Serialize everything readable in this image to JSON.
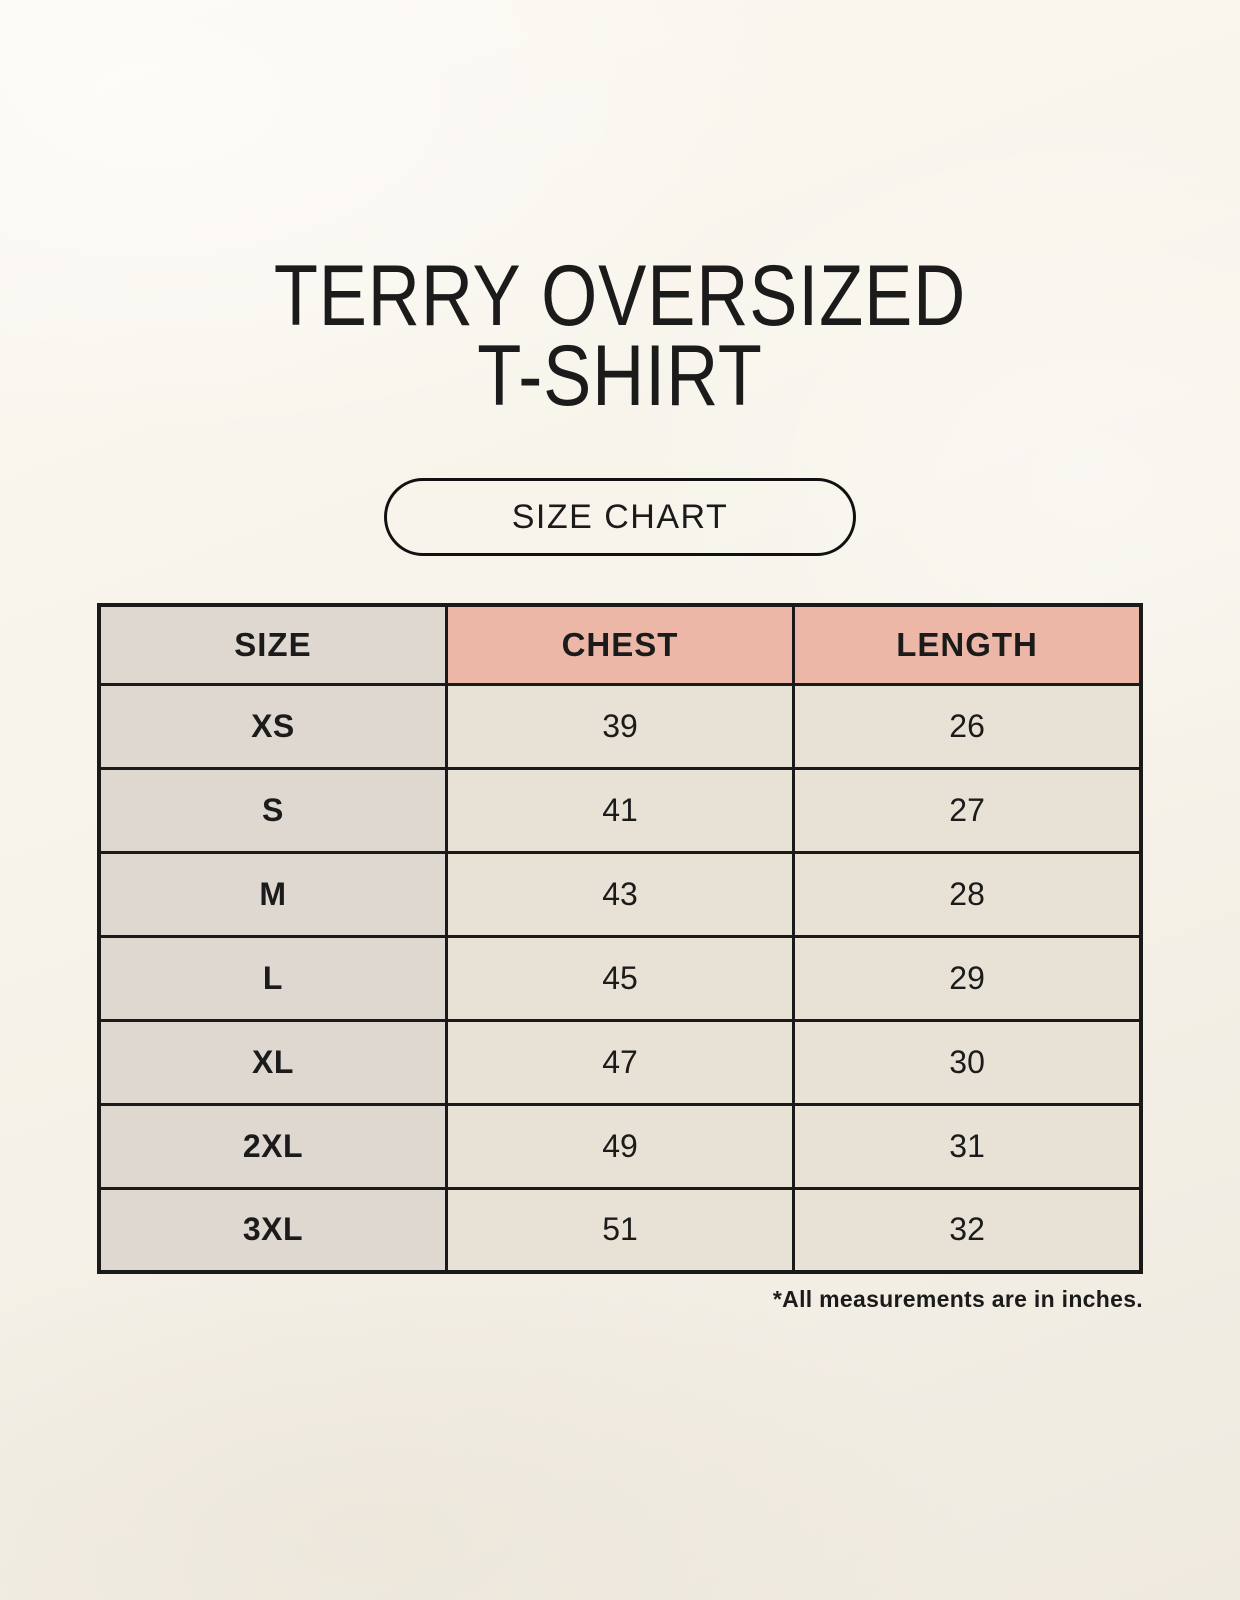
{
  "header": {
    "title_line1": "TERRY OVERSIZED",
    "title_line2": "T-SHIRT",
    "badge_label": "SIZE CHART"
  },
  "chart_data": {
    "type": "table",
    "columns": [
      "SIZE",
      "CHEST",
      "LENGTH"
    ],
    "rows": [
      [
        "XS",
        "39",
        "26"
      ],
      [
        "S",
        "41",
        "27"
      ],
      [
        "M",
        "43",
        "28"
      ],
      [
        "L",
        "45",
        "29"
      ],
      [
        "XL",
        "47",
        "30"
      ],
      [
        "2XL",
        "49",
        "31"
      ],
      [
        "3XL",
        "51",
        "32"
      ]
    ]
  },
  "footnote": "*All measurements are in inches.",
  "colors": {
    "background": "#f8f4ec",
    "header_accent": "#ecb7a6",
    "neutral_cell": "#ded8d1",
    "data_cell": "#e8e2d6",
    "border": "#1a1a1a",
    "text": "#1b1b1b"
  }
}
